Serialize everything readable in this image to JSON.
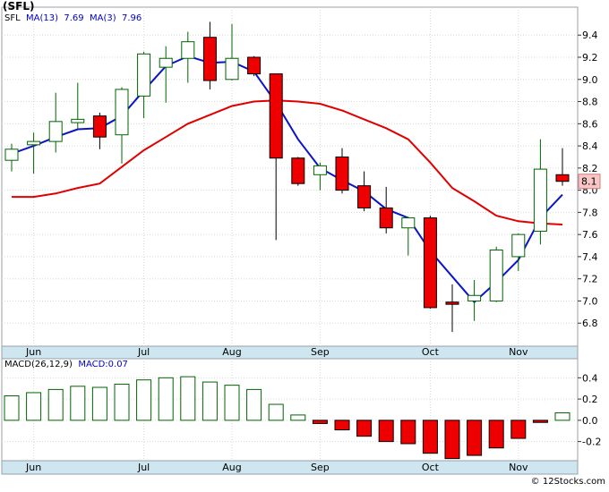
{
  "chart_data": [
    {
      "type": "candlestick",
      "symbol": "(SFL)",
      "legend": {
        "ticker": "SFL",
        "ma_long_label": "MA(13)",
        "ma_long_value": "7.69",
        "ma_short_label": "MA(3)",
        "ma_short_value": "7.96"
      },
      "price_label": "8.1",
      "ylim": [
        6.6,
        9.62
      ],
      "yticks": [
        "9.4",
        "9.2",
        "9.0",
        "8.8",
        "8.6",
        "8.4",
        "8.2",
        "8.0",
        "7.8",
        "7.6",
        "7.4",
        "7.2",
        "7.0",
        "6.8"
      ],
      "month_labels": [
        {
          "label": "Jun",
          "index": 1
        },
        {
          "label": "Jul",
          "index": 6
        },
        {
          "label": "Aug",
          "index": 10
        },
        {
          "label": "Sep",
          "index": 14
        },
        {
          "label": "Oct",
          "index": 19
        },
        {
          "label": "Nov",
          "index": 23
        }
      ],
      "candles": [
        {
          "open": 8.27,
          "close": 8.37,
          "high": 8.42,
          "low": 8.17
        },
        {
          "open": 8.41,
          "close": 8.44,
          "high": 8.52,
          "low": 8.15
        },
        {
          "open": 8.44,
          "close": 8.62,
          "high": 8.88,
          "low": 8.34
        },
        {
          "open": 8.61,
          "close": 8.64,
          "high": 8.97,
          "low": 8.55
        },
        {
          "open": 8.67,
          "close": 8.48,
          "high": 8.7,
          "low": 8.37
        },
        {
          "open": 8.5,
          "close": 8.91,
          "high": 8.93,
          "low": 8.24
        },
        {
          "open": 8.85,
          "close": 9.23,
          "high": 9.25,
          "low": 8.65
        },
        {
          "open": 9.11,
          "close": 9.19,
          "high": 9.3,
          "low": 8.79
        },
        {
          "open": 9.19,
          "close": 9.34,
          "high": 9.43,
          "low": 8.97
        },
        {
          "open": 9.38,
          "close": 8.99,
          "high": 9.52,
          "low": 8.91
        },
        {
          "open": 9.0,
          "close": 9.19,
          "high": 9.5,
          "low": 8.99
        },
        {
          "open": 9.2,
          "close": 9.05,
          "high": 9.21,
          "low": 9.03
        },
        {
          "open": 9.05,
          "close": 8.29,
          "high": 9.05,
          "low": 7.55
        },
        {
          "open": 8.29,
          "close": 8.06,
          "high": 8.3,
          "low": 8.04
        },
        {
          "open": 8.14,
          "close": 8.22,
          "high": 8.25,
          "low": 8.0
        },
        {
          "open": 8.3,
          "close": 8.0,
          "high": 8.38,
          "low": 7.97
        },
        {
          "open": 8.04,
          "close": 7.84,
          "high": 8.17,
          "low": 7.81
        },
        {
          "open": 7.84,
          "close": 7.66,
          "high": 8.03,
          "low": 7.61
        },
        {
          "open": 7.66,
          "close": 7.75,
          "high": 7.76,
          "low": 7.41
        },
        {
          "open": 7.75,
          "close": 6.94,
          "high": 7.77,
          "low": 6.93
        },
        {
          "open": 6.99,
          "close": 6.97,
          "high": 7.15,
          "low": 6.72
        },
        {
          "open": 7.0,
          "close": 7.05,
          "high": 7.19,
          "low": 6.82
        },
        {
          "open": 7.0,
          "close": 7.46,
          "high": 7.49,
          "low": 6.99
        },
        {
          "open": 7.4,
          "close": 7.6,
          "high": 7.61,
          "low": 7.27
        },
        {
          "open": 7.63,
          "close": 8.19,
          "high": 8.46,
          "low": 7.51
        },
        {
          "open": 8.14,
          "close": 8.08,
          "high": 8.38,
          "low": 8.04
        }
      ],
      "ma13": [
        {
          "index": 0,
          "value": 7.94
        },
        {
          "index": 1,
          "value": 7.94
        },
        {
          "index": 2,
          "value": 7.97
        },
        {
          "index": 3,
          "value": 8.02
        },
        {
          "index": 4,
          "value": 8.06
        },
        {
          "index": 5,
          "value": 8.21
        },
        {
          "index": 6,
          "value": 8.36
        },
        {
          "index": 7,
          "value": 8.48
        },
        {
          "index": 8,
          "value": 8.6
        },
        {
          "index": 9,
          "value": 8.68
        },
        {
          "index": 10,
          "value": 8.76
        },
        {
          "index": 11,
          "value": 8.8
        },
        {
          "index": 12,
          "value": 8.81
        },
        {
          "index": 13,
          "value": 8.8
        },
        {
          "index": 14,
          "value": 8.78
        },
        {
          "index": 15,
          "value": 8.72
        },
        {
          "index": 16,
          "value": 8.64
        },
        {
          "index": 17,
          "value": 8.56
        },
        {
          "index": 18,
          "value": 8.46
        },
        {
          "index": 19,
          "value": 8.25
        },
        {
          "index": 20,
          "value": 8.02
        },
        {
          "index": 21,
          "value": 7.9
        },
        {
          "index": 22,
          "value": 7.77
        },
        {
          "index": 23,
          "value": 7.72
        },
        {
          "index": 24,
          "value": 7.7
        },
        {
          "index": 25,
          "value": 7.69
        }
      ],
      "ma3": [
        {
          "index": 0,
          "value": 8.33
        },
        {
          "index": 1,
          "value": 8.4
        },
        {
          "index": 2,
          "value": 8.48
        },
        {
          "index": 3,
          "value": 8.55
        },
        {
          "index": 4,
          "value": 8.56
        },
        {
          "index": 5,
          "value": 8.67
        },
        {
          "index": 6,
          "value": 8.9
        },
        {
          "index": 7,
          "value": 9.12
        },
        {
          "index": 8,
          "value": 9.21
        },
        {
          "index": 9,
          "value": 9.15
        },
        {
          "index": 10,
          "value": 9.16
        },
        {
          "index": 11,
          "value": 9.07
        },
        {
          "index": 12,
          "value": 8.79
        },
        {
          "index": 13,
          "value": 8.46
        },
        {
          "index": 14,
          "value": 8.2
        },
        {
          "index": 15,
          "value": 8.09
        },
        {
          "index": 16,
          "value": 7.99
        },
        {
          "index": 17,
          "value": 7.83
        },
        {
          "index": 18,
          "value": 7.75
        },
        {
          "index": 19,
          "value": 7.45
        },
        {
          "index": 20,
          "value": 7.22
        },
        {
          "index": 21,
          "value": 6.99
        },
        {
          "index": 22,
          "value": 7.17
        },
        {
          "index": 23,
          "value": 7.37
        },
        {
          "index": 24,
          "value": 7.75
        },
        {
          "index": 25,
          "value": 7.96
        }
      ]
    },
    {
      "type": "bar",
      "title": "MACD(26,12,9)",
      "legend_value_label": "MACD:0.07",
      "ylim": [
        -0.38,
        0.47
      ],
      "yticks": [
        "0.4",
        "0.2",
        "0.0",
        "-0.2"
      ],
      "values": [
        0.23,
        0.26,
        0.29,
        0.32,
        0.31,
        0.34,
        0.38,
        0.4,
        0.41,
        0.36,
        0.33,
        0.29,
        0.15,
        0.05,
        -0.03,
        -0.09,
        -0.15,
        -0.2,
        -0.22,
        -0.31,
        -0.36,
        -0.33,
        -0.26,
        -0.17,
        -0.02,
        0.07
      ]
    }
  ],
  "footer": "© 12Stocks.com"
}
